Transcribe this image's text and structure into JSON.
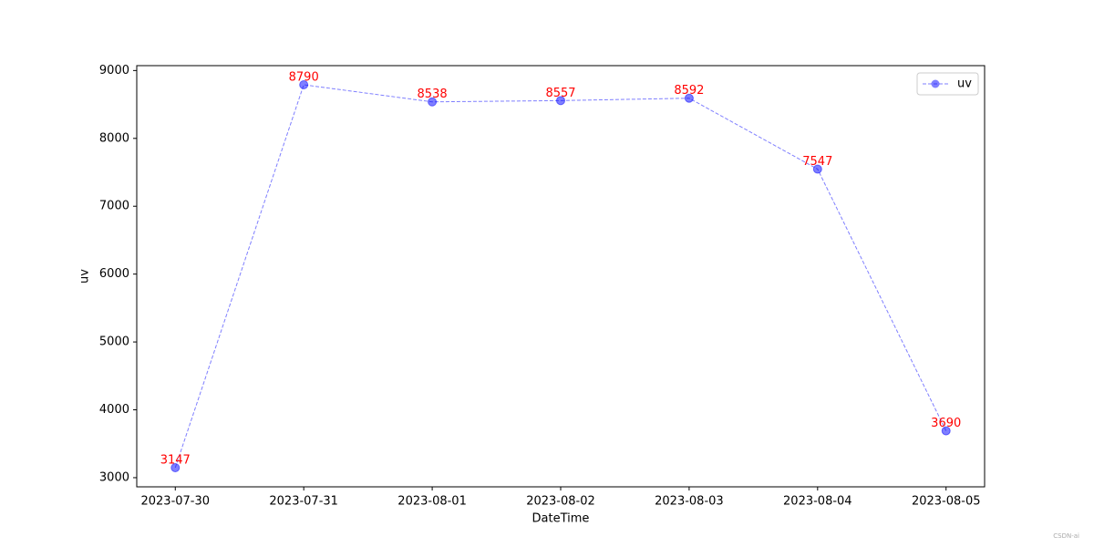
{
  "chart_data": {
    "type": "line",
    "xlabel": "DateTime",
    "ylabel": "uv",
    "categories": [
      "2023-07-30",
      "2023-07-31",
      "2023-08-01",
      "2023-08-02",
      "2023-08-03",
      "2023-08-04",
      "2023-08-05"
    ],
    "series": [
      {
        "name": "uv",
        "color": "#0000ff",
        "label_color": "#ff0000",
        "values": [
          3147,
          8790,
          8538,
          8557,
          8592,
          7547,
          3690
        ]
      }
    ],
    "ylim": [
      2865,
      9072
    ],
    "yticks": [
      3000,
      4000,
      5000,
      6000,
      7000,
      8000,
      9000
    ],
    "legend": "upper right",
    "grid": false,
    "watermark": "CSDN-ai"
  }
}
